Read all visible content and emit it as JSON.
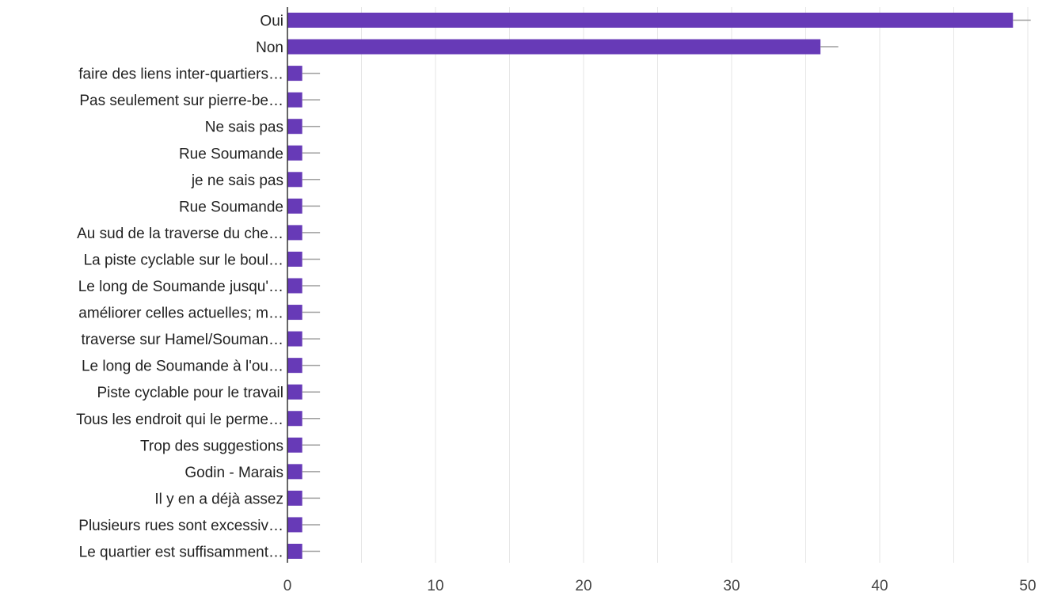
{
  "chart_data": {
    "type": "bar",
    "orientation": "horizontal",
    "title": "",
    "xlabel": "",
    "ylabel": "",
    "xlim": [
      0,
      50
    ],
    "x_ticks": [
      0,
      10,
      20,
      30,
      40,
      50
    ],
    "grid": true,
    "legend": "none",
    "bar_color": "#673ab7",
    "error_bar_color": "#9e9e9e",
    "categories": [
      "Oui",
      "Non",
      "faire des liens inter-quartiers…",
      "Pas seulement sur pierre-be…",
      "Ne sais pas",
      "Rue Soumande",
      "je ne sais pas",
      "Rue Soumande",
      "Au sud de la traverse du che…",
      "La piste cyclable sur le boul…",
      "Le long de Soumande jusqu'…",
      "améliorer celles actuelles; m…",
      "traverse sur Hamel/Souman…",
      "Le long de Soumande à l'ou…",
      "Piste cyclable pour le travail",
      "Tous les endroit qui le perme…",
      "Trop des suggestions",
      "Godin - Marais",
      "Il y en a déjà assez",
      "Plusieurs rues sont excessiv…",
      "Le quartier est suffisamment…"
    ],
    "values": [
      49,
      36,
      1,
      1,
      1,
      1,
      1,
      1,
      1,
      1,
      1,
      1,
      1,
      1,
      1,
      1,
      1,
      1,
      1,
      1,
      1
    ],
    "error_upper": [
      50.2,
      37.2,
      2.2,
      2.2,
      2.2,
      2.2,
      2.2,
      2.2,
      2.2,
      2.2,
      2.2,
      2.2,
      2.2,
      2.2,
      2.2,
      2.2,
      2.2,
      2.2,
      2.2,
      2.2,
      2.2
    ]
  }
}
